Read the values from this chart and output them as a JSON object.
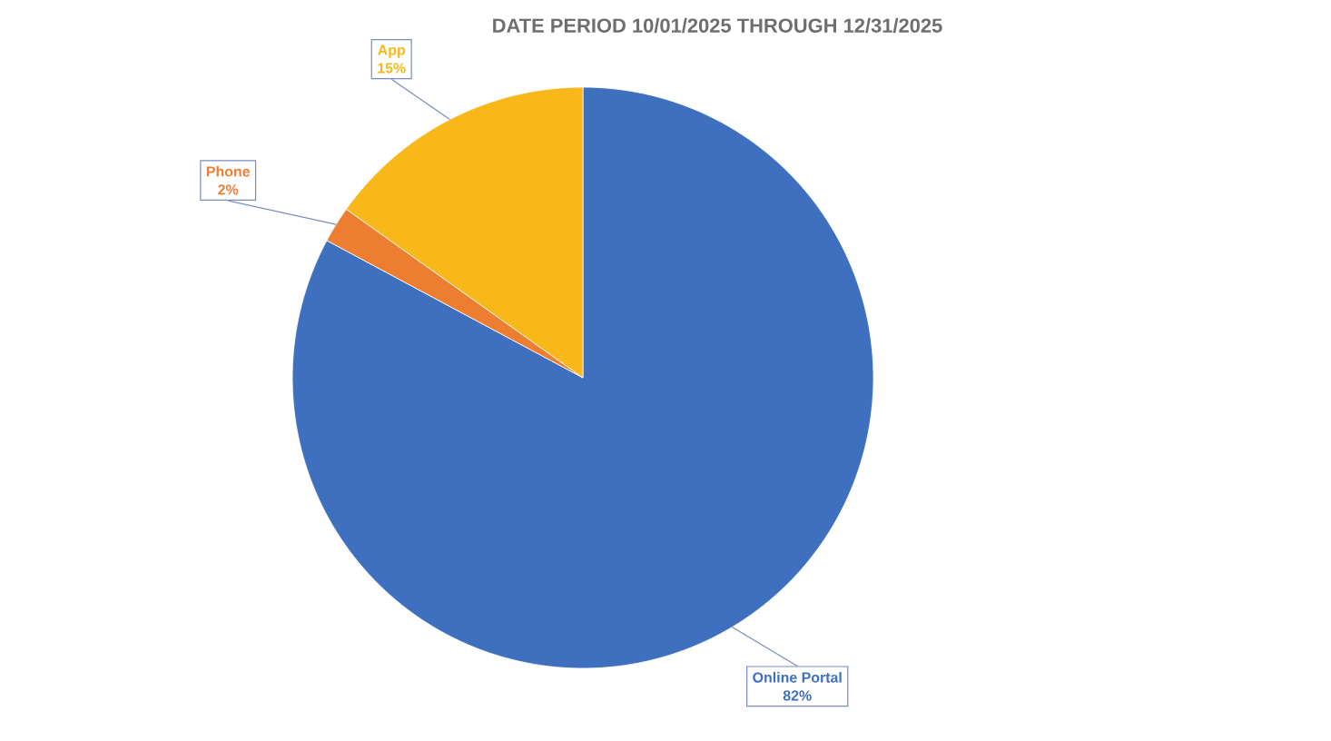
{
  "chart_data": {
    "type": "pie",
    "title": "DATE PERIOD 10/01/2025 THROUGH 12/31/2025",
    "categories": [
      "Online Portal",
      "Phone",
      "App"
    ],
    "values": [
      82,
      2,
      15
    ],
    "value_labels": [
      "82%",
      "2%",
      "15%"
    ],
    "colors": [
      "#3f70bf",
      "#ed7d31",
      "#f8b81a"
    ],
    "data_labels": true,
    "legend": false
  }
}
